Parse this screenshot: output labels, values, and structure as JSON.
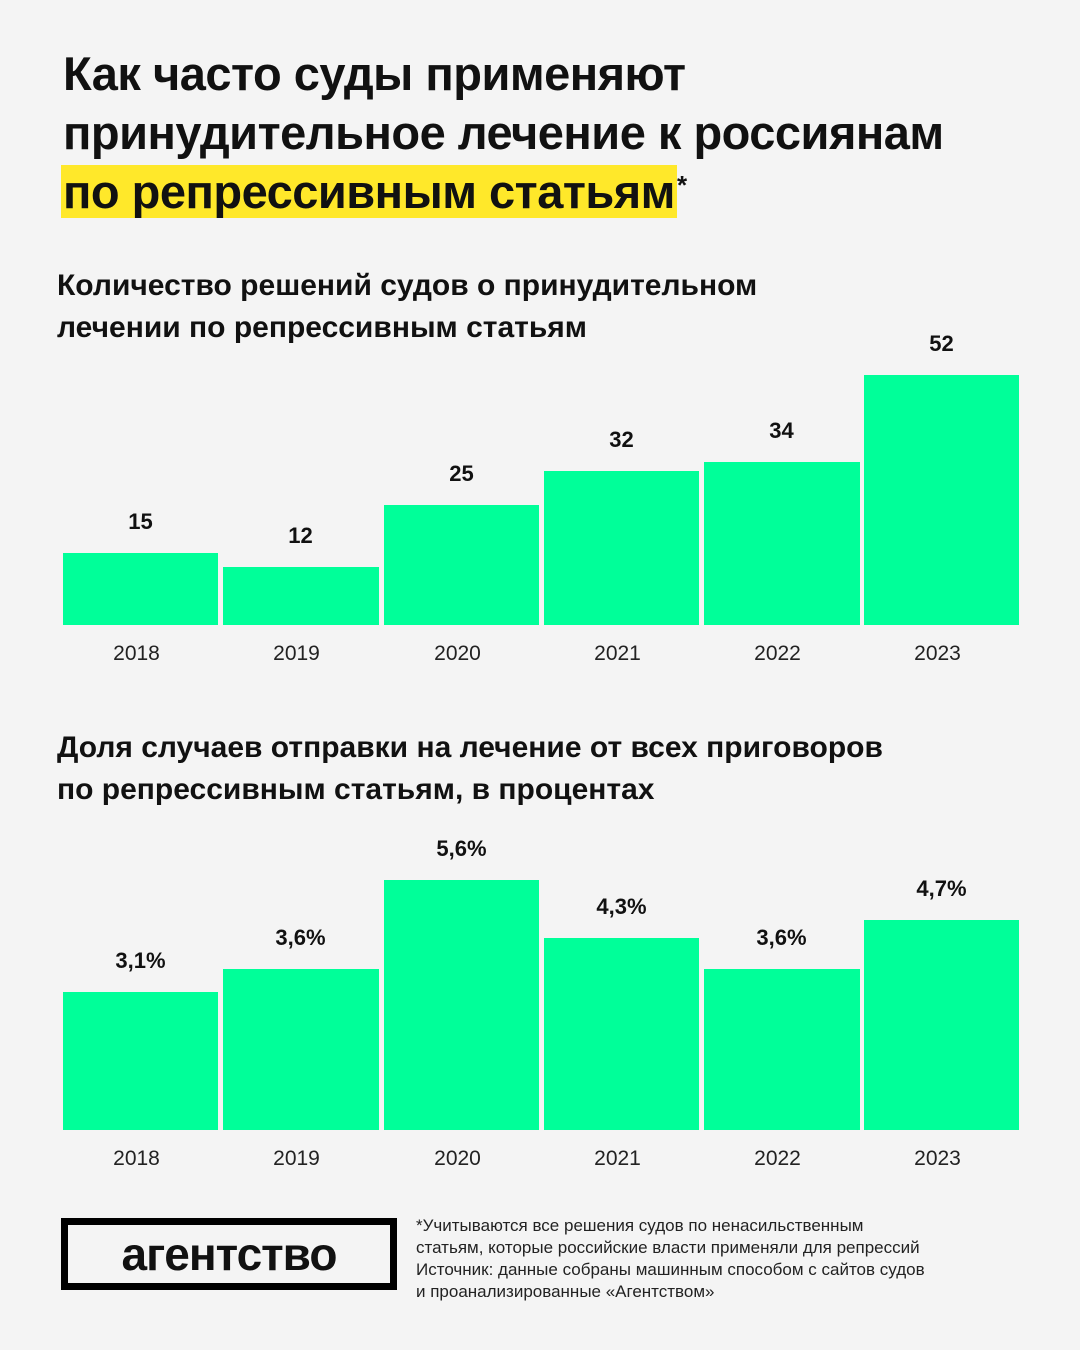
{
  "title": {
    "line1": "Как часто суды применяют",
    "line2": "принудительное лечение к россиянам",
    "highlight": "по репрессивным статьям",
    "mark": "*"
  },
  "colors": {
    "bar": "#00ff99",
    "highlight": "#ffe82a",
    "background": "#f4f4f4"
  },
  "chart_data": [
    {
      "type": "bar",
      "title": "Количество решений судов о принудительном лечении по репрессивным статьям",
      "title_lines": [
        "Количество решений судов о принудительном",
        "лечении по репрессивным статьям"
      ],
      "categories": [
        "2018",
        "2019",
        "2020",
        "2021",
        "2022",
        "2023"
      ],
      "values": [
        15,
        12,
        25,
        32,
        34,
        52
      ],
      "labels": [
        "15",
        "12",
        "25",
        "32",
        "34",
        "52"
      ],
      "xlabel": "",
      "ylabel": "",
      "ylim": [
        0,
        52
      ],
      "grid": false
    },
    {
      "type": "bar",
      "title": "Доля случаев отправки на лечение от всех приговоров по репрессивным статьям, в процентах",
      "title_lines": [
        "Доля случаев отправки на лечение от всех приговоров",
        "по репрессивным статьям, в процентах"
      ],
      "categories": [
        "2018",
        "2019",
        "2020",
        "2021",
        "2022",
        "2023"
      ],
      "values": [
        3.1,
        3.6,
        5.6,
        4.3,
        3.6,
        4.7
      ],
      "labels": [
        "3,1%",
        "3,6%",
        "5,6%",
        "4,3%",
        "3,6%",
        "4,7%"
      ],
      "xlabel": "",
      "ylabel": "",
      "ylim": [
        0,
        5.6
      ],
      "grid": false
    }
  ],
  "footer": {
    "logo": "агентство",
    "note_lines": [
      "*Учитываются все решения судов по ненасильственным",
      "статьям, которые российские власти применяли для репрессий",
      "Источник: данные собраны машинным способом с сайтов судов",
      "и проанализированные «Агентством»"
    ]
  }
}
